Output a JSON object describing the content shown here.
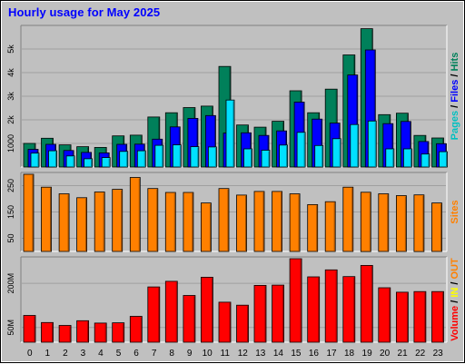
{
  "title": "Hourly usage for May 2025",
  "chart_data": [
    {
      "type": "bar",
      "panel": "top",
      "categories": [
        "0",
        "1",
        "2",
        "3",
        "4",
        "5",
        "6",
        "7",
        "8",
        "9",
        "10",
        "11",
        "12",
        "13",
        "14",
        "15",
        "16",
        "17",
        "18",
        "19",
        "20",
        "21",
        "22",
        "23"
      ],
      "series": [
        {
          "name": "Hits",
          "color": "#00805a",
          "values": [
            1000,
            1220,
            940,
            860,
            830,
            1320,
            1350,
            2120,
            2300,
            2520,
            2580,
            4260,
            1780,
            1690,
            1940,
            3230,
            2300,
            3300,
            4750,
            5860,
            2220,
            2280,
            1340,
            1230
          ]
        },
        {
          "name": "Files",
          "color": "#0000ff",
          "values": [
            750,
            960,
            700,
            620,
            600,
            960,
            970,
            1180,
            1700,
            2060,
            2180,
            1440,
            1450,
            1340,
            1530,
            2750,
            2030,
            1860,
            3900,
            4960,
            1840,
            1930,
            1080,
            990
          ]
        },
        {
          "name": "Pages",
          "color": "#00e0ff",
          "values": [
            590,
            690,
            470,
            350,
            400,
            660,
            690,
            920,
            940,
            860,
            850,
            2840,
            770,
            710,
            930,
            1470,
            910,
            1200,
            1800,
            1950,
            770,
            770,
            550,
            650
          ]
        }
      ],
      "yticks": [
        {
          "v": 1000,
          "label": "1000"
        },
        {
          "v": 2000,
          "label": "2k"
        },
        {
          "v": 3000,
          "label": "3k"
        },
        {
          "v": 4000,
          "label": "4k"
        },
        {
          "v": 5000,
          "label": "5k"
        }
      ],
      "ylim": [
        0,
        6000
      ],
      "right_label": [
        {
          "text": "Pages",
          "color": "#00c0c0"
        },
        {
          "text": " / ",
          "color": "#000000"
        },
        {
          "text": "Files",
          "color": "#0000ff"
        },
        {
          "text": " / ",
          "color": "#000000"
        },
        {
          "text": "Hits",
          "color": "#00805a"
        }
      ]
    },
    {
      "type": "bar",
      "panel": "middle",
      "categories": [
        "0",
        "1",
        "2",
        "3",
        "4",
        "5",
        "6",
        "7",
        "8",
        "9",
        "10",
        "11",
        "12",
        "13",
        "14",
        "15",
        "16",
        "17",
        "18",
        "19",
        "20",
        "21",
        "22",
        "23"
      ],
      "series": [
        {
          "name": "Sites",
          "color": "#ff8000",
          "values": [
            294,
            244,
            219,
            204,
            226,
            236,
            281,
            239,
            224,
            224,
            184,
            239,
            214,
            228,
            228,
            219,
            178,
            189,
            244,
            225,
            219,
            212,
            215,
            184
          ]
        }
      ],
      "yticks": [
        {
          "v": 50,
          "label": "50"
        },
        {
          "v": 150,
          "label": "150"
        },
        {
          "v": 250,
          "label": "250"
        }
      ],
      "ylim": [
        0,
        300
      ],
      "right_label": [
        {
          "text": "Sites",
          "color": "#ff8000"
        }
      ]
    },
    {
      "type": "bar",
      "panel": "bottom",
      "categories": [
        "0",
        "1",
        "2",
        "3",
        "4",
        "5",
        "6",
        "7",
        "8",
        "9",
        "10",
        "11",
        "12",
        "13",
        "14",
        "15",
        "16",
        "17",
        "18",
        "19",
        "20",
        "21",
        "22",
        "23"
      ],
      "series": [
        {
          "name": "Volume",
          "color": "#ff0000",
          "values": [
            91,
            67,
            57,
            73,
            65,
            66,
            88,
            188,
            207,
            159,
            221,
            136,
            126,
            193,
            194,
            284,
            222,
            246,
            223,
            261,
            185,
            170,
            172,
            172
          ]
        }
      ],
      "yticks": [
        {
          "v": 50,
          "label": "50M"
        },
        {
          "v": 200,
          "label": "200M"
        }
      ],
      "ylim": [
        0,
        290
      ],
      "right_label": [
        {
          "text": "Volume",
          "color": "#ff0000"
        },
        {
          "text": " / ",
          "color": "#000000"
        },
        {
          "text": "IN",
          "color": "#ffff00"
        },
        {
          "text": " / ",
          "color": "#000000"
        },
        {
          "text": "OUT",
          "color": "#ff8000"
        }
      ]
    }
  ]
}
